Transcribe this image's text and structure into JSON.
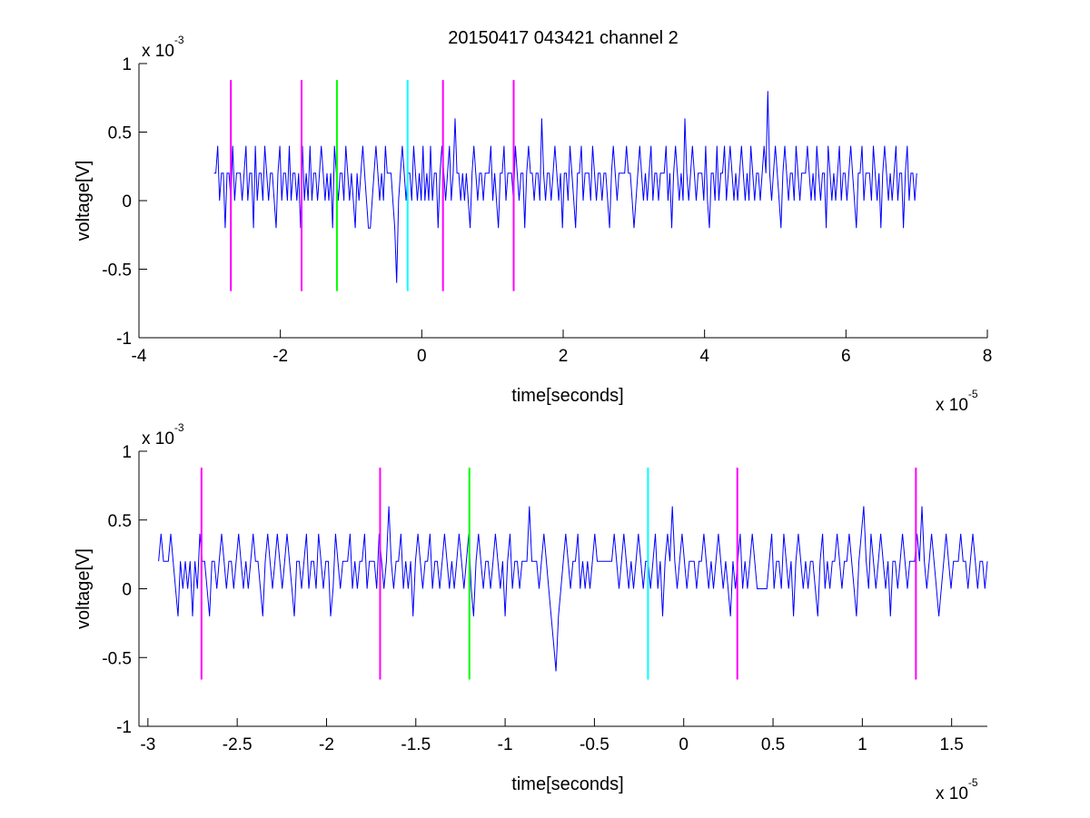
{
  "title": "20150417 043421 channel 2",
  "chart_data": [
    {
      "type": "line",
      "title": "20150417 043421 channel 2",
      "xlabel": "time[seconds]",
      "ylabel": "voltage[V]",
      "x_multiplier": "x 10",
      "x_exponent": "-5",
      "y_multiplier": "x 10",
      "y_exponent": "-3",
      "xlim": [
        -4e-05,
        8e-05
      ],
      "ylim": [
        -0.001,
        0.001
      ],
      "xticks": [
        -4e-05,
        -2e-05,
        0,
        2e-05,
        4e-05,
        6e-05,
        8e-05
      ],
      "xtick_labels": [
        "-4",
        "-2",
        "0",
        "2",
        "4",
        "6",
        "8"
      ],
      "yticks": [
        -0.001,
        -0.0005,
        0,
        0.0005,
        0.001
      ],
      "ytick_labels": [
        "-1",
        "-0.5",
        "0",
        "0.5",
        "1"
      ],
      "grid": false,
      "series": [
        {
          "color": "#0000ff",
          "x_start": -2.94e-05,
          "x_end": 7e-05,
          "y_values_mV": [
            0.2,
            0.2,
            0.4,
            0,
            0.2,
            0.2,
            -0.2,
            0.2,
            0.2,
            0,
            0.4,
            0,
            0.2,
            0.2,
            0.2,
            0,
            0.2,
            0.4,
            0,
            0.2,
            0.2,
            -0.2,
            0.4,
            0,
            0.2,
            0.2,
            0,
            0.4,
            0.2,
            0,
            0.2,
            0.2,
            0,
            -0.2,
            0.2,
            0.4,
            0,
            0.2,
            0.2,
            0,
            0.4,
            0,
            0.2,
            0.2,
            0,
            0.2,
            -0.2,
            0.4,
            0,
            0.2,
            0,
            0.4,
            0,
            0.2,
            0.2,
            0,
            0.2,
            0.4,
            0.2,
            0,
            0.2,
            0,
            0.2,
            -0.2,
            0.4,
            0.2,
            0,
            0.2,
            0.2,
            0,
            0.4,
            0.2,
            0,
            0.2,
            0,
            -0.2,
            0.2,
            0,
            0.2,
            0.4,
            0.2,
            0,
            -0.2,
            -0.2,
            0,
            0.2,
            0.4,
            0.2,
            0,
            0.2,
            0,
            0.4,
            0.2,
            0.2,
            0.2,
            0,
            -0.2,
            -0.6,
            0,
            0.2,
            0.4,
            0.2,
            0,
            0.2,
            0.2,
            0,
            0.4,
            0.2,
            0,
            0.2,
            0,
            0.4,
            0,
            0.2,
            0,
            0.4,
            0,
            0.2,
            0.2,
            -0.2,
            0.2,
            0.4,
            0.2,
            0,
            0.2,
            0.4,
            0,
            0.2,
            0.6,
            0.2,
            0.2,
            0,
            0.2,
            0,
            0.2,
            0,
            -0.2,
            0.2,
            0.4,
            0.2,
            0,
            0.2,
            0.2,
            0,
            0.2,
            0.2,
            0.2,
            0.4,
            0,
            0.2,
            0,
            -0.2,
            0.2,
            0.2,
            0.4,
            0,
            0.2,
            0.2,
            0.2,
            0,
            0.4,
            0.2,
            0,
            0.2,
            0.2,
            -0.2,
            0.2,
            0.4,
            0.2,
            0.2,
            0,
            0.2,
            0.2,
            0,
            0.6,
            0.2,
            0,
            0.2,
            0.2,
            0,
            0.2,
            0.4,
            0.2,
            0,
            0.2,
            -0.2,
            0.2,
            0.2,
            0,
            0.4,
            0.2,
            0,
            -0.2,
            0.2,
            0.2,
            0.4,
            0,
            0.2,
            0.2,
            0.2,
            0,
            0.4,
            0.2,
            0,
            0.2,
            0.2,
            0,
            0.2,
            0.2,
            0,
            -0.2,
            0.2,
            0.4,
            0.2,
            0,
            0.2,
            0.2,
            0.2,
            0.2,
            0.4,
            0.2,
            0.2,
            0,
            -0.2,
            0,
            0.2,
            0.4,
            0.2,
            0,
            0.2,
            0,
            0.2,
            0.4,
            0,
            0.2,
            0.2,
            0,
            0.2,
            0.2,
            0.2,
            0.4,
            0,
            0.2,
            -0.2,
            0.2,
            0.4,
            0.2,
            0,
            0.2,
            0,
            0.6,
            0.2,
            0,
            0.2,
            0.4,
            0.2,
            0,
            0.2,
            0.2,
            0.2,
            0,
            0.4,
            0,
            -0.2,
            0.2,
            0.2,
            0,
            0.4,
            0,
            0.2,
            0.2,
            0.4,
            0,
            0.2,
            0.4,
            0.2,
            0,
            0.2,
            0,
            0.2,
            0.4,
            0.2,
            0,
            0.2,
            0,
            0.4,
            0.2,
            0,
            0.2,
            0.2,
            0,
            0.2,
            0.4,
            0.2,
            0.8,
            0.2,
            0,
            0.2,
            0.4,
            0.2,
            0,
            -0.2,
            0.2,
            0.4,
            0.2,
            0,
            0.2,
            0.2,
            0,
            0.4,
            0.2,
            0,
            0.2,
            0.2,
            0.2,
            0.4,
            0.2,
            0,
            0.2,
            0,
            0.4,
            0.2,
            0,
            0.2,
            0.2,
            -0.2,
            0.4,
            0.2,
            0,
            0.2,
            0,
            0.2,
            0.4,
            0,
            0.2,
            0.2,
            0,
            0.2,
            0.4,
            0.2,
            0,
            -0.2,
            0.2,
            0.2,
            0.4,
            0,
            0.2,
            0.2,
            0.2,
            0,
            0.4,
            0.2,
            0,
            0.2,
            -0.2,
            0.2,
            0.4,
            0.2,
            0,
            0.2,
            0,
            0.2,
            0.4,
            0,
            0.2,
            0.2,
            -0.2,
            0.2,
            0.4,
            0,
            0.2,
            0.2,
            0,
            0.2
          ]
        }
      ],
      "markers": [
        {
          "x": -2.7e-05,
          "color": "#ff00ff"
        },
        {
          "x": -1.7e-05,
          "color": "#ff00ff"
        },
        {
          "x": -1.2e-05,
          "color": "#00ff00"
        },
        {
          "x": -2e-06,
          "color": "#00ffff"
        },
        {
          "x": 3e-06,
          "color": "#ff00ff"
        },
        {
          "x": 1.3e-05,
          "color": "#ff00ff"
        }
      ],
      "marker_range": [
        -0.00066,
        0.00088
      ]
    },
    {
      "type": "line",
      "title": "",
      "xlabel": "time[seconds]",
      "ylabel": "voltage[V]",
      "x_multiplier": "x 10",
      "x_exponent": "-5",
      "y_multiplier": "x 10",
      "y_exponent": "-3",
      "xlim": [
        -3.05e-05,
        1.7e-05
      ],
      "ylim": [
        -0.001,
        0.001
      ],
      "xticks": [
        -3e-05,
        -2.5e-05,
        -2e-05,
        -1.5e-05,
        -1e-05,
        -5e-06,
        0,
        5e-06,
        1e-05,
        1.5e-05
      ],
      "xtick_labels": [
        "-3",
        "-2.5",
        "-2",
        "-1.5",
        "-1",
        "-0.5",
        "0",
        "0.5",
        "1",
        "1.5"
      ],
      "yticks": [
        -0.001,
        -0.0005,
        0,
        0.0005,
        0.001
      ],
      "ytick_labels": [
        "-1",
        "-0.5",
        "0",
        "0.5",
        "1"
      ],
      "grid": false,
      "series": [
        {
          "color": "#0000ff",
          "x_start": -2.94e-05,
          "x_end": 1.7e-05,
          "y_values_mV": [
            0.2,
            0.4,
            0.2,
            0.2,
            0.2,
            0.4,
            0.2,
            0,
            -0.2,
            0.2,
            0,
            0.2,
            0,
            0.2,
            -0.2,
            0.2,
            0,
            0.4,
            0.2,
            0.2,
            0,
            -0.2,
            0.2,
            0.2,
            0,
            0.2,
            0.4,
            0.2,
            0,
            0.2,
            0.2,
            0,
            0.2,
            0.4,
            0.2,
            0,
            0.2,
            0,
            0.2,
            0.4,
            0.2,
            0.2,
            0,
            -0.2,
            0.2,
            0.4,
            0.2,
            0,
            0.2,
            0.4,
            0.2,
            0,
            0.2,
            0.4,
            0.2,
            0,
            -0.2,
            0.2,
            0.2,
            0,
            0.2,
            0.4,
            0,
            0.2,
            0.2,
            0,
            0.4,
            0.2,
            0,
            0.2,
            0.2,
            -0.2,
            0,
            0.4,
            0.2,
            0,
            0.2,
            0.2,
            0.2,
            0.4,
            0,
            0.2,
            0,
            0.2,
            0.2,
            0.4,
            0,
            0.2,
            0.2,
            0.2,
            0,
            0.4,
            0.2,
            0,
            0.2,
            0.6,
            0.2,
            0,
            0.2,
            0.2,
            0.4,
            0,
            0.2,
            0,
            0.2,
            -0.2,
            0.2,
            0.4,
            0.2,
            0,
            0.2,
            0.2,
            0.4,
            0,
            0.2,
            0.2,
            0,
            0.2,
            0.4,
            0.2,
            0,
            0.2,
            0,
            0.2,
            0.4,
            0.2,
            0,
            0.2,
            0.4,
            0,
            -0.2,
            0.2,
            0.4,
            0.2,
            0,
            0.2,
            0.2,
            0,
            0.2,
            0.4,
            0.2,
            0,
            0.2,
            -0.2,
            0.2,
            0.4,
            0,
            0.2,
            0.2,
            0,
            0.2,
            0.2,
            0.2,
            0.6,
            0.2,
            0.2,
            0.2,
            0,
            0.2,
            0.4,
            0.2,
            0,
            -0.2,
            -0.4,
            -0.6,
            -0.2,
            0,
            0.2,
            0.4,
            0.2,
            0,
            0.2,
            0.2,
            0.4,
            0,
            0.2,
            0,
            0.2,
            0,
            0.2,
            0.4,
            0.2,
            0.2,
            0.2,
            0.2,
            0.2,
            0.2,
            0.2,
            0.4,
            0.2,
            0,
            0.2,
            0.4,
            0.2,
            0,
            0.2,
            0,
            0.2,
            0.4,
            0.2,
            0,
            0.2,
            0.2,
            0,
            0.2,
            0.4,
            0,
            0.2,
            -0.2,
            0.2,
            0.4,
            0.2,
            0.6,
            0.2,
            0,
            0.2,
            0.4,
            0.2,
            0,
            0.2,
            0.2,
            0.2,
            0,
            0.2,
            0.2,
            0.4,
            0.2,
            0,
            0.2,
            0,
            0.2,
            0.4,
            0.2,
            0,
            0.2,
            0,
            -0.2,
            0.2,
            0,
            0.2,
            0.4,
            0,
            0.2,
            0,
            0.2,
            0.4,
            0.2,
            0,
            0,
            0,
            0,
            0,
            0.2,
            0.4,
            0,
            0.2,
            0.2,
            0,
            0.4,
            0.2,
            0,
            0.2,
            -0.2,
            0.2,
            0.4,
            0.2,
            0,
            0.2,
            0,
            0.2,
            0.2,
            0,
            -0.2,
            0.2,
            0.4,
            0,
            0.2,
            0,
            0.2,
            0.2,
            0.4,
            0.2,
            0,
            0.2,
            0.2,
            0.4,
            0.2,
            0,
            -0.2,
            0.2,
            0.4,
            0.6,
            0.2,
            0,
            0.4,
            0.2,
            0,
            0.2,
            0.4,
            0.2,
            0,
            0.2,
            -0.2,
            0.2,
            0.2,
            0,
            0.2,
            0.4,
            0.2,
            0,
            0.2,
            0.2,
            0.2,
            0.4,
            0.2,
            0.6,
            0.2,
            0,
            0.2,
            0.4,
            0.2,
            0,
            -0.2,
            0,
            0.2,
            0.4,
            0.2,
            0,
            0.2,
            0.2,
            0.2,
            0.4,
            0.2,
            0.2,
            0,
            0.2,
            0.4,
            0.2,
            0,
            0.2,
            0.2,
            0,
            0.2
          ]
        }
      ],
      "markers": [
        {
          "x": -2.7e-05,
          "color": "#ff00ff"
        },
        {
          "x": -1.7e-05,
          "color": "#ff00ff"
        },
        {
          "x": -1.2e-05,
          "color": "#00ff00"
        },
        {
          "x": -2e-06,
          "color": "#00ffff"
        },
        {
          "x": 3e-06,
          "color": "#ff00ff"
        },
        {
          "x": 1.3e-05,
          "color": "#ff00ff"
        }
      ],
      "marker_range": [
        -0.00066,
        0.00088
      ]
    }
  ]
}
